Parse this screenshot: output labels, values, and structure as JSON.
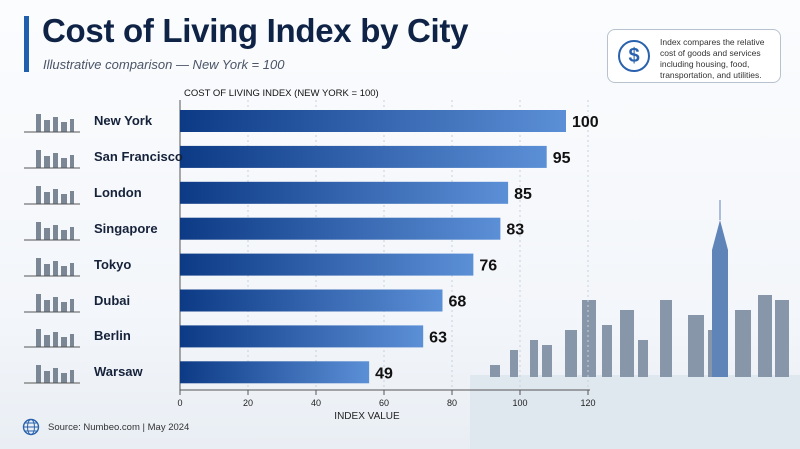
{
  "header": {
    "title": "Cost of Living Index by City",
    "subtitle": "Illustrative comparison — New York = 100"
  },
  "info_box": {
    "icon": "dollar-icon",
    "text": "Index compares the relative cost of goods and services including housing, food, transportation, and utilities."
  },
  "footer": {
    "icon": "globe-icon",
    "source": "Source: Numbeo.com | May 2024"
  },
  "colors": {
    "bar_start": "#0d3a85",
    "bar_end": "#5b8fd6",
    "title": "#0f2347"
  },
  "chart_data": {
    "type": "bar",
    "orientation": "horizontal",
    "title": "COST OF LIVING INDEX (NEW YORK = 100)",
    "xlabel": "INDEX VALUE",
    "ylabel": "",
    "categories": [
      "New York",
      "San Francisco",
      "London",
      "Singapore",
      "Tokyo",
      "Dubai",
      "Berlin",
      "Warsaw"
    ],
    "values": [
      100,
      95,
      85,
      83,
      76,
      68,
      63,
      49
    ],
    "xlim": [
      0,
      120
    ],
    "xticks": [
      "0",
      "20",
      "40",
      "60",
      "80",
      "100",
      "120"
    ],
    "grid": true
  }
}
